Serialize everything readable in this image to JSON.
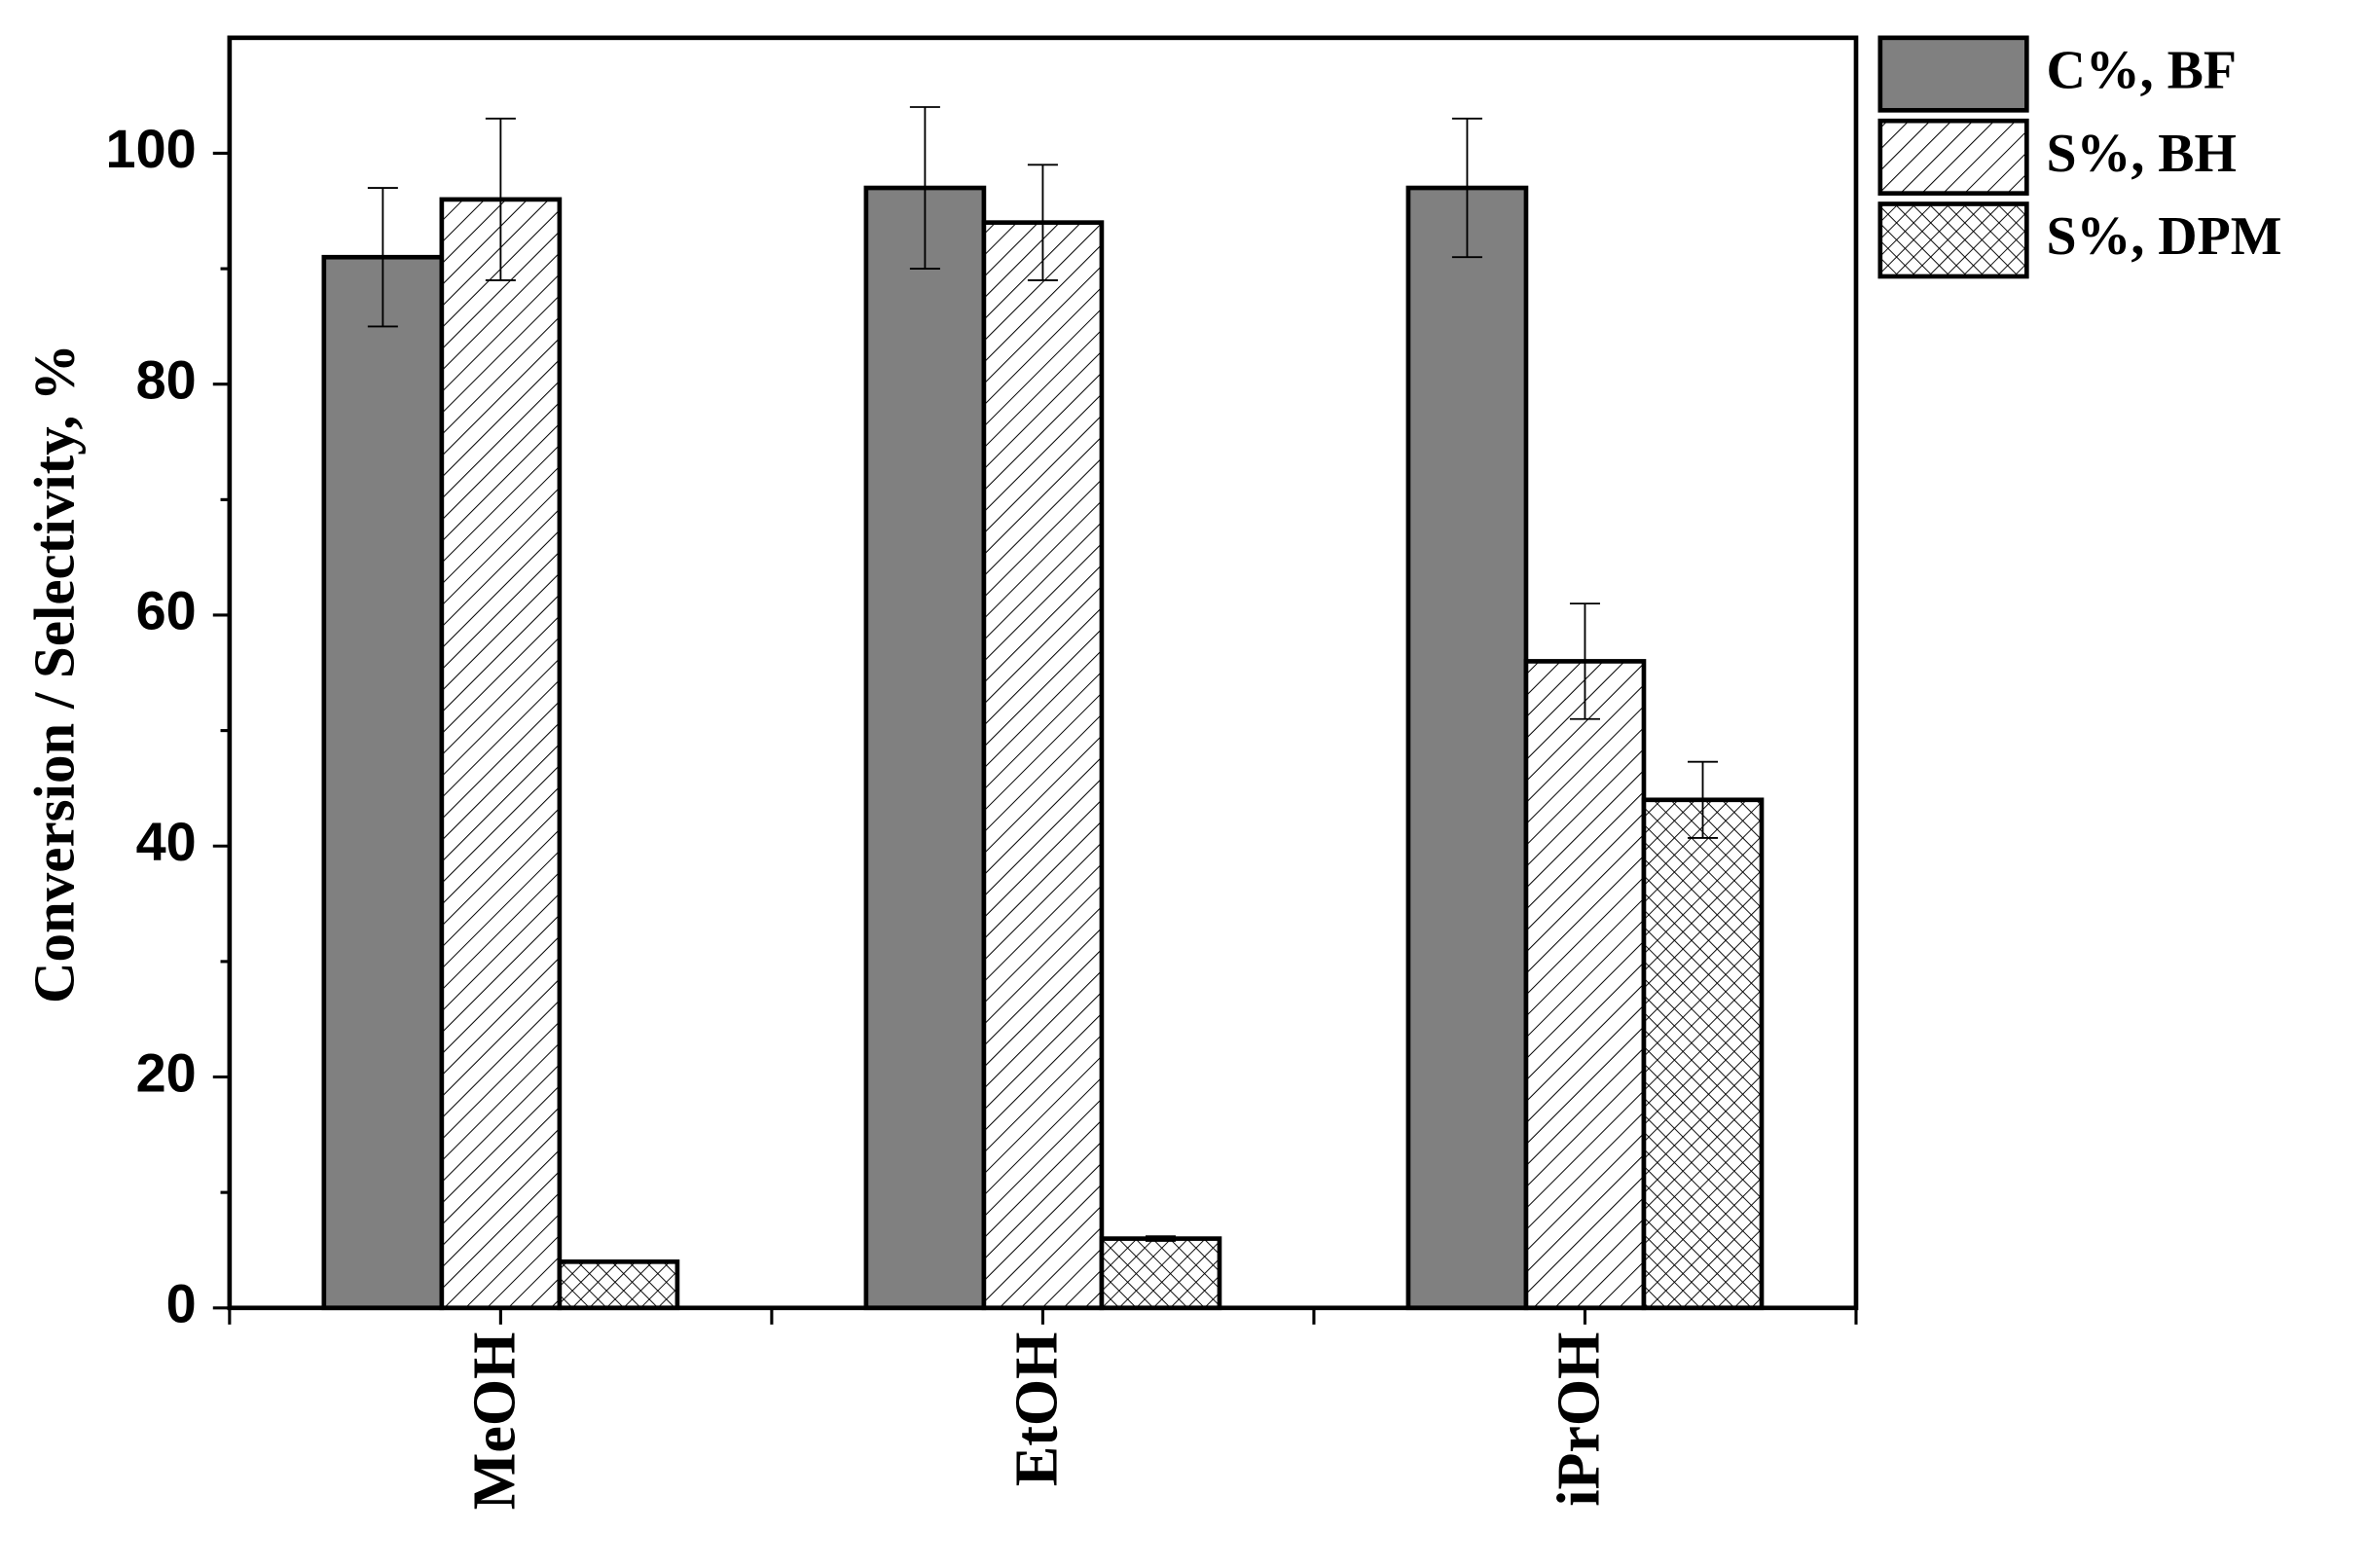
{
  "chart_data": {
    "type": "bar",
    "y_label": "Conversion / Selectivity, %",
    "categories": [
      "MeOH",
      "EtOH",
      "iPrOH"
    ],
    "series": [
      {
        "name": "C%, BF",
        "color": "#808080",
        "hatch": "none",
        "values": [
          91,
          97,
          97
        ],
        "errors": [
          6,
          7,
          6
        ]
      },
      {
        "name": "S%, BH",
        "color": "#ffffff",
        "hatch": "backslash",
        "values": [
          96,
          94,
          56
        ],
        "errors": [
          7,
          5,
          5
        ]
      },
      {
        "name": "S%, DPM",
        "color": "#ffffff",
        "hatch": "cross",
        "values": [
          4,
          6,
          44
        ],
        "errors": [
          0.1,
          0.2,
          3.3
        ]
      }
    ],
    "ylim": [
      0,
      110
    ],
    "yticks": [
      0,
      20,
      40,
      60,
      80,
      100
    ],
    "legend": "outside-top-right"
  }
}
